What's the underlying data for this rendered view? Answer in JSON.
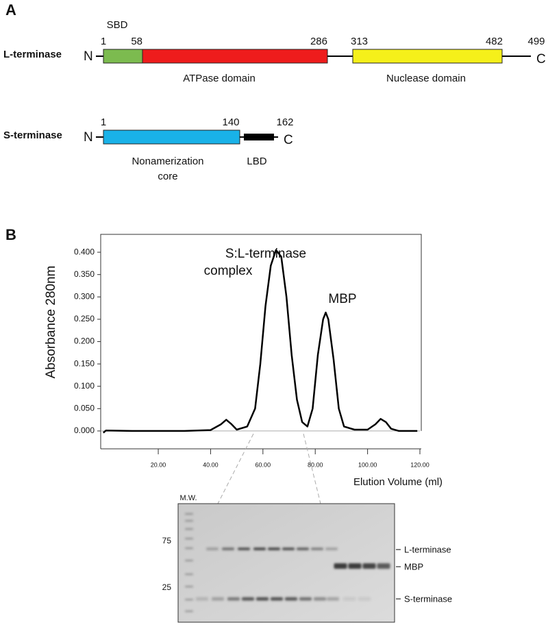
{
  "panel_a": {
    "letter": "A",
    "l_terminase": {
      "label": "L-terminase",
      "n_term": "N",
      "c_term": "C",
      "positions": [
        1,
        58,
        286,
        313,
        482,
        499
      ],
      "domains": [
        "SBD",
        "ATPase domain",
        "Nuclease domain"
      ]
    },
    "s_terminase": {
      "label": "S-terminase",
      "n_term": "N",
      "c_term": "C",
      "positions": [
        1,
        140,
        162
      ],
      "domains": [
        "Nonamerization",
        "core",
        "LBD"
      ]
    }
  },
  "chart_data": {
    "type": "line",
    "letter": "B",
    "x_label": "Elution Volume (ml)",
    "y_label": "Absorbance 280nm",
    "annotations": [
      "S:L-terminase",
      "complex",
      "MBP"
    ],
    "x": [
      -1,
      0,
      10,
      30,
      40,
      44,
      46,
      48,
      50,
      54,
      57,
      59,
      61,
      63,
      65,
      67,
      69,
      71,
      73,
      75,
      77,
      79,
      81,
      83,
      84,
      85,
      87,
      89,
      91,
      95,
      100,
      103,
      105,
      107,
      109,
      112,
      119
    ],
    "values": [
      -0.004,
      0.001,
      0.0,
      0.0,
      0.002,
      0.015,
      0.025,
      0.015,
      0.003,
      0.01,
      0.05,
      0.15,
      0.28,
      0.37,
      0.405,
      0.39,
      0.3,
      0.17,
      0.07,
      0.02,
      0.01,
      0.05,
      0.17,
      0.25,
      0.265,
      0.25,
      0.16,
      0.05,
      0.01,
      0.003,
      0.003,
      0.015,
      0.027,
      0.02,
      0.005,
      0.0,
      0.0
    ],
    "color": "#000000",
    "xlim": [
      -2,
      120
    ],
    "ylim": [
      -0.04,
      0.44
    ],
    "xticks": [
      {
        "value": 20,
        "label": "20.00"
      },
      {
        "value": 40,
        "label": "40.00"
      },
      {
        "value": 60,
        "label": "60.00"
      },
      {
        "value": 80,
        "label": "80.00"
      },
      {
        "value": 100,
        "label": "100.00"
      },
      {
        "value": 120,
        "label": "120.00"
      }
    ],
    "yticks": [
      {
        "value": 0,
        "label": "0.000"
      },
      {
        "value": 0.05,
        "label": "0.050"
      },
      {
        "value": 0.1,
        "label": "0.100"
      },
      {
        "value": 0.15,
        "label": "0.150"
      },
      {
        "value": 0.2,
        "label": "0.200"
      },
      {
        "value": 0.25,
        "label": "0.250"
      },
      {
        "value": 0.3,
        "label": "0.300"
      },
      {
        "value": 0.35,
        "label": "0.350"
      },
      {
        "value": 0.4,
        "label": "0.400"
      }
    ]
  },
  "gel": {
    "marker_label": "M.W.",
    "markers": [
      "75",
      "25"
    ],
    "bands": [
      "L-terminase",
      "MBP",
      "S-terminase"
    ]
  }
}
